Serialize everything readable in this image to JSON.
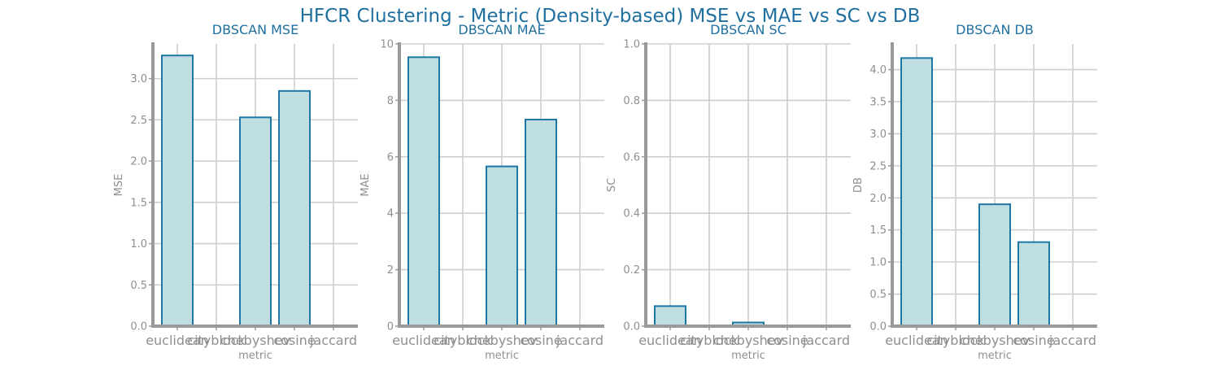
{
  "figure": {
    "title": "HFCR Clustering - Metric (Density-based) MSE vs MAE vs SC vs DB"
  },
  "colors": {
    "title": "#1f6f9f",
    "bar_fill": "#bfdee2",
    "bar_edge": "#1f77a4",
    "grid": "#cfcfcf",
    "axis": "#999999",
    "tick_label": "#8f8f8f"
  },
  "chart_data": [
    {
      "type": "bar",
      "title": "DBSCAN MSE",
      "xlabel": "metric",
      "ylabel": "MSE",
      "categories": [
        "euclidean",
        "cityblock",
        "chebyshev",
        "cosine",
        "jaccard"
      ],
      "values": [
        3.28,
        null,
        2.53,
        2.85,
        null
      ],
      "ylim": [
        0,
        3.42
      ],
      "yticks": [
        0.0,
        0.5,
        1.0,
        1.5,
        2.0,
        2.5,
        3.0
      ],
      "ytick_labels": [
        "0.0",
        "0.5",
        "1.0",
        "1.5",
        "2.0",
        "2.5",
        "3.0"
      ],
      "grid": true
    },
    {
      "type": "bar",
      "title": "DBSCAN MAE",
      "xlabel": "metric",
      "ylabel": "MAE",
      "categories": [
        "euclidean",
        "cityblock",
        "chebyshev",
        "cosine",
        "jaccard"
      ],
      "values": [
        9.53,
        null,
        5.66,
        7.32,
        null
      ],
      "ylim": [
        0,
        10
      ],
      "yticks": [
        0,
        2,
        4,
        6,
        8,
        10
      ],
      "ytick_labels": [
        "0",
        "2",
        "4",
        "6",
        "8",
        "10"
      ],
      "grid": true
    },
    {
      "type": "bar",
      "title": "DBSCAN SC",
      "xlabel": "metric",
      "ylabel": "SC",
      "categories": [
        "euclidean",
        "cityblock",
        "chebyshev",
        "cosine",
        "jaccard"
      ],
      "values": [
        0.071,
        null,
        0.013,
        null,
        null
      ],
      "ylim": [
        0,
        1.0
      ],
      "yticks": [
        0.0,
        0.2,
        0.4,
        0.6,
        0.8,
        1.0
      ],
      "ytick_labels": [
        "0.0",
        "0.2",
        "0.4",
        "0.6",
        "0.8",
        "1.0"
      ],
      "grid": true
    },
    {
      "type": "bar",
      "title": "DBSCAN DB",
      "xlabel": "metric",
      "ylabel": "DB",
      "categories": [
        "euclidean",
        "cityblock",
        "chebyshev",
        "cosine",
        "jaccard"
      ],
      "values": [
        4.18,
        null,
        1.9,
        1.31,
        null
      ],
      "ylim": [
        0,
        4.4
      ],
      "yticks": [
        0.0,
        0.5,
        1.0,
        1.5,
        2.0,
        2.5,
        3.0,
        3.5,
        4.0
      ],
      "ytick_labels": [
        "0.0",
        "0.5",
        "1.0",
        "1.5",
        "2.0",
        "2.5",
        "3.0",
        "3.5",
        "4.0"
      ],
      "grid": true
    }
  ]
}
